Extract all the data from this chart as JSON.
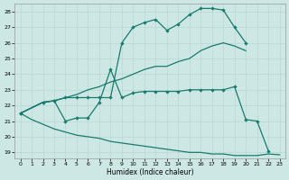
{
  "xlabel": "Humidex (Indice chaleur)",
  "bg_color": "#cde8e4",
  "grid_color": "#b8d8d4",
  "line_color": "#1a7a6e",
  "xlim": [
    0,
    23
  ],
  "ylim": [
    19,
    28.3
  ],
  "yticks": [
    19,
    20,
    21,
    22,
    23,
    24,
    25,
    26,
    27,
    28
  ],
  "xticks": [
    0,
    1,
    2,
    3,
    4,
    5,
    6,
    7,
    8,
    9,
    10,
    11,
    12,
    13,
    14,
    15,
    16,
    17,
    18,
    19,
    20,
    21,
    22,
    23
  ],
  "line1_x": [
    0,
    1,
    2,
    3,
    4,
    5,
    6,
    7,
    8,
    9,
    10,
    11,
    12,
    13,
    14,
    15,
    16,
    17,
    18,
    19,
    20,
    21,
    22,
    23
  ],
  "line1_y": [
    21.5,
    21.1,
    20.8,
    20.5,
    20.3,
    20.1,
    20.0,
    19.9,
    19.7,
    19.6,
    19.5,
    19.4,
    19.3,
    19.2,
    19.1,
    19.0,
    19.0,
    18.9,
    18.9,
    18.8,
    18.8,
    18.8,
    18.9,
    18.85
  ],
  "line1_markers": false,
  "line2_x": [
    0,
    2,
    3,
    4,
    5,
    6,
    7,
    8,
    9,
    10,
    11,
    12,
    13,
    14,
    15,
    16,
    17,
    18,
    19,
    20,
    21,
    22
  ],
  "line2_y": [
    21.5,
    22.2,
    22.3,
    21.0,
    21.2,
    21.2,
    22.2,
    24.3,
    22.5,
    22.8,
    22.9,
    22.9,
    22.9,
    22.9,
    23.0,
    23.0,
    23.0,
    23.0,
    23.2,
    21.1,
    21.0,
    19.1
  ],
  "line2_markers": true,
  "line3_x": [
    0,
    2,
    3,
    4,
    5,
    6,
    7,
    8,
    9,
    10,
    11,
    12,
    13,
    14,
    15,
    16,
    17,
    18,
    19,
    20
  ],
  "line3_y": [
    21.5,
    22.2,
    22.3,
    22.5,
    22.7,
    23.0,
    23.2,
    23.5,
    23.7,
    24.0,
    24.3,
    24.5,
    24.5,
    24.8,
    25.0,
    25.5,
    25.8,
    26.0,
    25.8,
    25.5
  ],
  "line3_markers": false,
  "line4_x": [
    0,
    2,
    3,
    4,
    5,
    6,
    7,
    8,
    9,
    10,
    11,
    12,
    13,
    14,
    15,
    16,
    17,
    18,
    19,
    20
  ],
  "line4_y": [
    21.5,
    22.2,
    22.3,
    22.5,
    22.5,
    22.5,
    22.5,
    22.5,
    26.0,
    27.0,
    27.3,
    27.5,
    26.8,
    27.2,
    27.8,
    28.2,
    28.2,
    28.1,
    27.0,
    26.0
  ],
  "line4_markers": true
}
